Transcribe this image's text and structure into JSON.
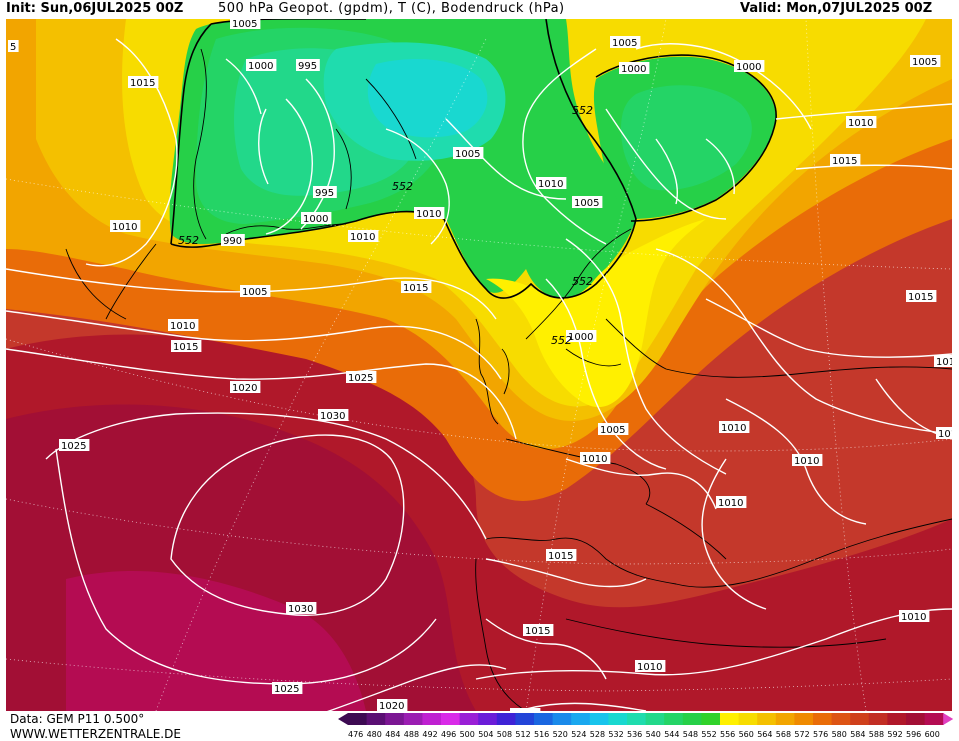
{
  "header": {
    "init": "Init: Sun,06JUL2025 00Z",
    "title": "500 hPa Geopot. (gpdm), T (C), Bodendruck (hPa)",
    "valid": "Valid: Mon,07JUL2025 00Z"
  },
  "footer": {
    "data_source": "Data: GEM P11 0.500°",
    "site": "WWW.WETTERZENTRALE.DE"
  },
  "colors": {
    "map_background": "#c4382b",
    "isobar_line": "#ffffff",
    "coastline": "#000000",
    "isohypse_552_line": "#000000"
  },
  "scale": {
    "values": [
      "476",
      "480",
      "484",
      "488",
      "492",
      "496",
      "500",
      "504",
      "508",
      "512",
      "516",
      "520",
      "524",
      "528",
      "532",
      "536",
      "540",
      "544",
      "548",
      "552",
      "556",
      "560",
      "564",
      "568",
      "572",
      "576",
      "580",
      "584",
      "588",
      "592",
      "596",
      "600"
    ],
    "colors": [
      "#3d0a52",
      "#5a0f73",
      "#7b1693",
      "#9b1db2",
      "#bf20d1",
      "#d92ae8",
      "#9a1fd6",
      "#6b1cd8",
      "#3e22d6",
      "#2244d8",
      "#1a66e0",
      "#1a8aea",
      "#1aa8ef",
      "#18c4ec",
      "#19d8d0",
      "#1fdcae",
      "#22d88a",
      "#24d466",
      "#26d048",
      "#30d22a",
      "#fff000",
      "#f7dc00",
      "#f4c000",
      "#f2a500",
      "#ef8a00",
      "#e96c08",
      "#dd5414",
      "#cf401c",
      "#c22e24",
      "#b0182a",
      "#a20f35",
      "#b40c52"
    ]
  },
  "map": {
    "isobar_labels": [
      {
        "text": "1005"
      },
      {
        "text": "1000"
      },
      {
        "text": "995"
      },
      {
        "text": "1015"
      },
      {
        "text": "1005"
      },
      {
        "text": "1000"
      },
      {
        "text": "1000"
      },
      {
        "text": "1005"
      },
      {
        "text": "1010"
      },
      {
        "text": "1015"
      },
      {
        "text": "1010"
      },
      {
        "text": "995"
      },
      {
        "text": "1000"
      },
      {
        "text": "1010"
      },
      {
        "text": "1010"
      },
      {
        "text": "990"
      },
      {
        "text": "1010"
      },
      {
        "text": "1005"
      },
      {
        "text": "1005"
      },
      {
        "text": "1015"
      },
      {
        "text": "1010"
      },
      {
        "text": "1015"
      },
      {
        "text": "1000"
      },
      {
        "text": "1010"
      },
      {
        "text": "1020"
      },
      {
        "text": "1025"
      },
      {
        "text": "1005"
      },
      {
        "text": "1010"
      },
      {
        "text": "1030"
      },
      {
        "text": "1010"
      },
      {
        "text": "1025"
      },
      {
        "text": "1010"
      },
      {
        "text": "1010"
      },
      {
        "text": "1015"
      },
      {
        "text": "1030"
      },
      {
        "text": "1015"
      },
      {
        "text": "1015"
      },
      {
        "text": "1010"
      },
      {
        "text": "1010"
      },
      {
        "text": "1025"
      },
      {
        "text": "1020"
      },
      {
        "text": "1010"
      },
      {
        "text": "5"
      },
      {
        "text": "1005"
      },
      {
        "text": "1010"
      }
    ],
    "isohypse_labels": [
      {
        "text": "552"
      },
      {
        "text": "552"
      },
      {
        "text": "552"
      },
      {
        "text": "552"
      },
      {
        "text": "552"
      }
    ]
  }
}
